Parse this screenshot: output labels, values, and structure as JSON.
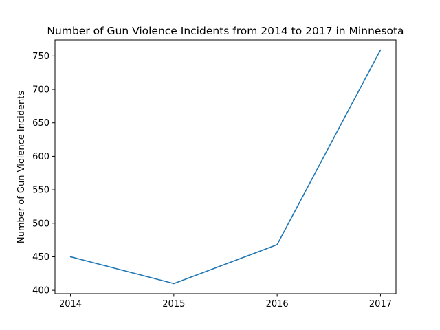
{
  "chart_data": {
    "type": "line",
    "title": "Number of Gun Violence Incidents from 2014 to 2017 in Minnesota",
    "xlabel": "",
    "ylabel": "Number of Gun Violence Incidents",
    "x": [
      2014,
      2015,
      2016,
      2017
    ],
    "series": [
      {
        "values": [
          450,
          410,
          468,
          759
        ]
      }
    ],
    "xticks": [
      "2014",
      "2015",
      "2016",
      "2017"
    ],
    "yticks": [
      400,
      450,
      500,
      550,
      600,
      650,
      700,
      750
    ],
    "ylim": [
      395,
      774
    ],
    "grid": false,
    "legend": "none",
    "colors": {
      "line": "#1f77b4",
      "axes": "#000000",
      "background": "#ffffff"
    }
  }
}
